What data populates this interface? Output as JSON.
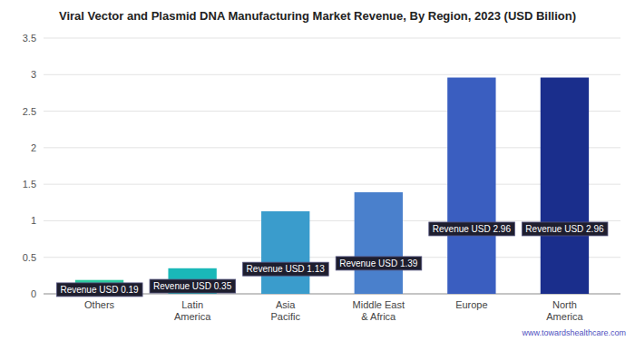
{
  "chart_data": {
    "type": "bar",
    "title": "Viral Vector and Plasmid DNA Manufacturing Market Revenue, By Region, 2023 (USD Billion)",
    "categories": [
      "Others",
      "Latin\nAmerica",
      "Asia\nPacific",
      "Middle East\n& Africa",
      "Europe",
      "North\nAmerica"
    ],
    "values": [
      0.19,
      0.35,
      1.13,
      1.39,
      2.96,
      2.96
    ],
    "value_labels": [
      "Revenue USD 0.19",
      "Revenue USD 0.35",
      "Revenue USD 1.13",
      "Revenue USD 1.39",
      "Revenue USD 2.96",
      "Revenue USD 2.96"
    ],
    "data_labels": true,
    "colors": [
      "#2ecaa0",
      "#1ab8b8",
      "#3a9ccc",
      "#4a80cc",
      "#3a5ec0",
      "#1a2e8c"
    ],
    "ylim": [
      0,
      3.5
    ],
    "yticks": [
      0,
      0.5,
      1,
      1.5,
      2,
      2.5,
      3,
      3.5
    ],
    "grid": true,
    "annotations": [
      "www.towardshealthcare.com"
    ]
  }
}
